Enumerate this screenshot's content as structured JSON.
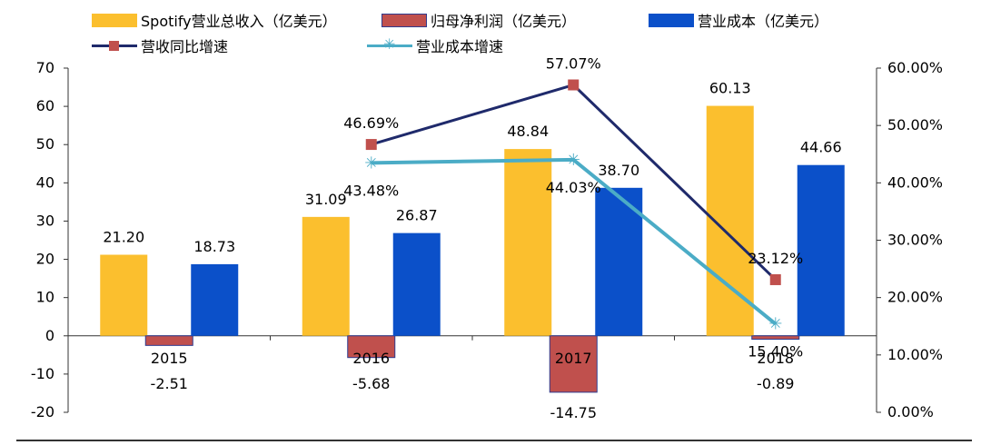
{
  "legend": {
    "revenue": "Spotify营业总收入（亿美元）",
    "net_profit": "归母净利润（亿美元）",
    "cost": "营业成本（亿美元）",
    "revenue_growth": "营收同比增速",
    "cost_growth": "营业成本增速"
  },
  "colors": {
    "revenue": "#FBBF2E",
    "net_profit": "#C0504D",
    "net_profit_border": "#2F3B8F",
    "cost": "#0B50C9",
    "revenue_growth": "#1F2A6B",
    "revenue_growth_marker": "#C0504D",
    "cost_growth": "#4BACC6"
  },
  "chart_data": {
    "type": "bar",
    "categories": [
      "2015",
      "2016",
      "2017",
      "2018"
    ],
    "series": [
      {
        "name": "Spotify营业总收入（亿美元）",
        "type": "bar",
        "axis": "left",
        "values": [
          21.2,
          31.09,
          48.84,
          60.13
        ],
        "labels": [
          "21.20",
          "31.09",
          "48.84",
          "60.13"
        ]
      },
      {
        "name": "归母净利润（亿美元）",
        "type": "bar",
        "axis": "left",
        "values": [
          -2.51,
          -5.68,
          -14.75,
          -0.89
        ],
        "labels": [
          "-2.51",
          "-5.68",
          "-14.75",
          "-0.89"
        ]
      },
      {
        "name": "营业成本（亿美元）",
        "type": "bar",
        "axis": "left",
        "values": [
          18.73,
          26.87,
          38.7,
          44.66
        ],
        "labels": [
          "18.73",
          "26.87",
          "38.70",
          "44.66"
        ]
      },
      {
        "name": "营收同比增速",
        "type": "line",
        "axis": "right",
        "values": [
          null,
          46.69,
          57.07,
          23.12
        ],
        "labels": [
          "",
          "46.69%",
          "57.07%",
          "23.12%"
        ]
      },
      {
        "name": "营业成本增速",
        "type": "line",
        "axis": "right",
        "values": [
          null,
          43.48,
          44.03,
          15.4
        ],
        "labels": [
          "",
          "43.48%",
          "44.03%",
          "15.40%"
        ]
      }
    ],
    "y_left": {
      "min": -20,
      "max": 70,
      "ticks": [
        "-20",
        "-10",
        "0",
        "10",
        "20",
        "30",
        "40",
        "50",
        "60",
        "70"
      ]
    },
    "y_right": {
      "min": 0,
      "max": 60,
      "ticks": [
        "0.00%",
        "10.00%",
        "20.00%",
        "30.00%",
        "40.00%",
        "50.00%",
        "60.00%"
      ]
    },
    "grid": false,
    "legend_position": "top-left"
  }
}
